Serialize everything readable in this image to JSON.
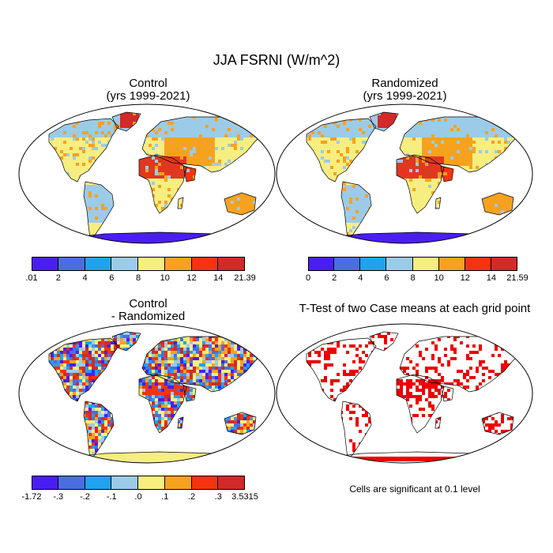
{
  "title": "JJA FSRNI (W/m^2)",
  "panels": [
    {
      "id": "control",
      "title_line1": "Control",
      "title_line2": "(yrs 1999-2021)"
    },
    {
      "id": "randomized",
      "title_line1": "Randomized",
      "title_line2": "(yrs 1999-2021)"
    },
    {
      "id": "difference",
      "title_line1": "Control",
      "title_line2": "- Randomized"
    },
    {
      "id": "ttest",
      "title_line1": "T-Test of two Case means at each grid point",
      "title_line2": ""
    }
  ],
  "colorbars": {
    "control": {
      "colors": [
        "#4a1ef2",
        "#4a6ee0",
        "#1fa3ee",
        "#9ccbe8",
        "#f7ee80",
        "#f6a21f",
        "#f5330f",
        "#d2292a"
      ],
      "labels": [
        ".01",
        "2",
        "4",
        "6",
        "8",
        "10",
        "12",
        "14",
        "21.39"
      ]
    },
    "randomized": {
      "colors": [
        "#4a1ef2",
        "#4a6ee0",
        "#1fa3ee",
        "#9ccbe8",
        "#f7ee80",
        "#f6a21f",
        "#f5330f",
        "#d2292a"
      ],
      "labels": [
        "0",
        "2",
        "4",
        "6",
        "8",
        "10",
        "12",
        "14",
        "21.59"
      ]
    },
    "difference": {
      "colors": [
        "#4a1ef2",
        "#4a6ee0",
        "#1fa3ee",
        "#9ccbe8",
        "#f7ee80",
        "#f6a21f",
        "#f5330f",
        "#d2292a"
      ],
      "labels": [
        "-1.72",
        "-.3",
        "-.2",
        "-.1",
        ".0",
        ".1",
        ".2",
        ".3",
        "3.5315"
      ]
    }
  },
  "significance_note": "Cells are significant at 0.1 level",
  "colors": {
    "antarctica_control": "#4a1ef2",
    "antarctica_difference": "#f7ee80",
    "significant": "#ee0000",
    "ocean": "#ffffff"
  }
}
